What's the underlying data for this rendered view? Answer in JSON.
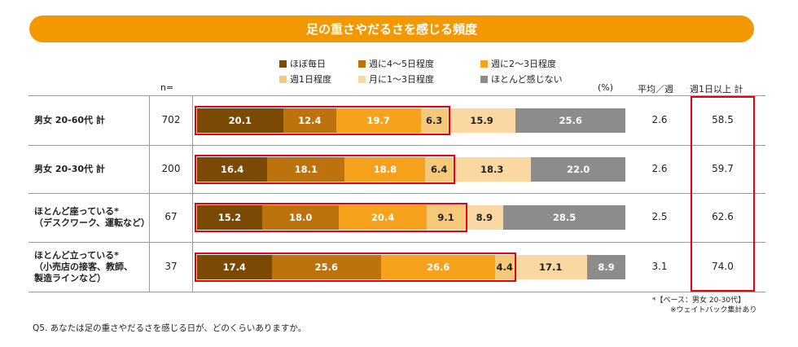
{
  "title": "足の重さやだるさを感じる頻度",
  "header": {
    "n_label": "n=",
    "pct_unit": "(%)",
    "avg_label": "平均／週",
    "total_label": "週1日以上 計"
  },
  "colors": [
    "#7a4a05",
    "#bd730d",
    "#f7a21c",
    "#f6c97a",
    "#fbd8a2",
    "#8c8c8c"
  ],
  "chart_data": {
    "type": "bar",
    "orientation": "horizontal",
    "stacked": true,
    "title": "足の重さやだるさを感じる頻度",
    "unit": "%",
    "legend": [
      "ほぼ毎日",
      "週に4～5日程度",
      "週に2～3日程度",
      "週1日程度",
      "月に1～3日程度",
      "ほとんど感じない"
    ],
    "rows": [
      {
        "label": "男女 20-60代 計",
        "n": "702",
        "values": [
          20.1,
          12.4,
          19.7,
          6.3,
          15.9,
          25.6
        ],
        "avg": "2.6",
        "total": "58.5"
      },
      {
        "label": "男女 20-30代 計",
        "n": "200",
        "values": [
          16.4,
          18.1,
          18.8,
          6.4,
          18.3,
          22.0
        ],
        "avg": "2.6",
        "total": "59.7"
      },
      {
        "label": "ほとんど座っている*\n（デスクワーク、運転など）",
        "n": "67",
        "values": [
          15.2,
          18.0,
          20.4,
          9.1,
          8.9,
          28.5
        ],
        "avg": "2.5",
        "total": "62.6"
      },
      {
        "label": "ほとんど立っている*\n（小売店の接客、教師、\n製造ラインなど）",
        "n": "37",
        "values": [
          17.4,
          25.6,
          26.6,
          4.4,
          17.1,
          8.9
        ],
        "avg": "3.1",
        "total": "74.0"
      }
    ]
  },
  "notes": {
    "base": "*【ベース：男女 20-30代】",
    "weight": "※ウェイトバック集計あり"
  },
  "question": "Q5. あなたは足の重さやだるさを感じる日が、どのくらいありますか。"
}
